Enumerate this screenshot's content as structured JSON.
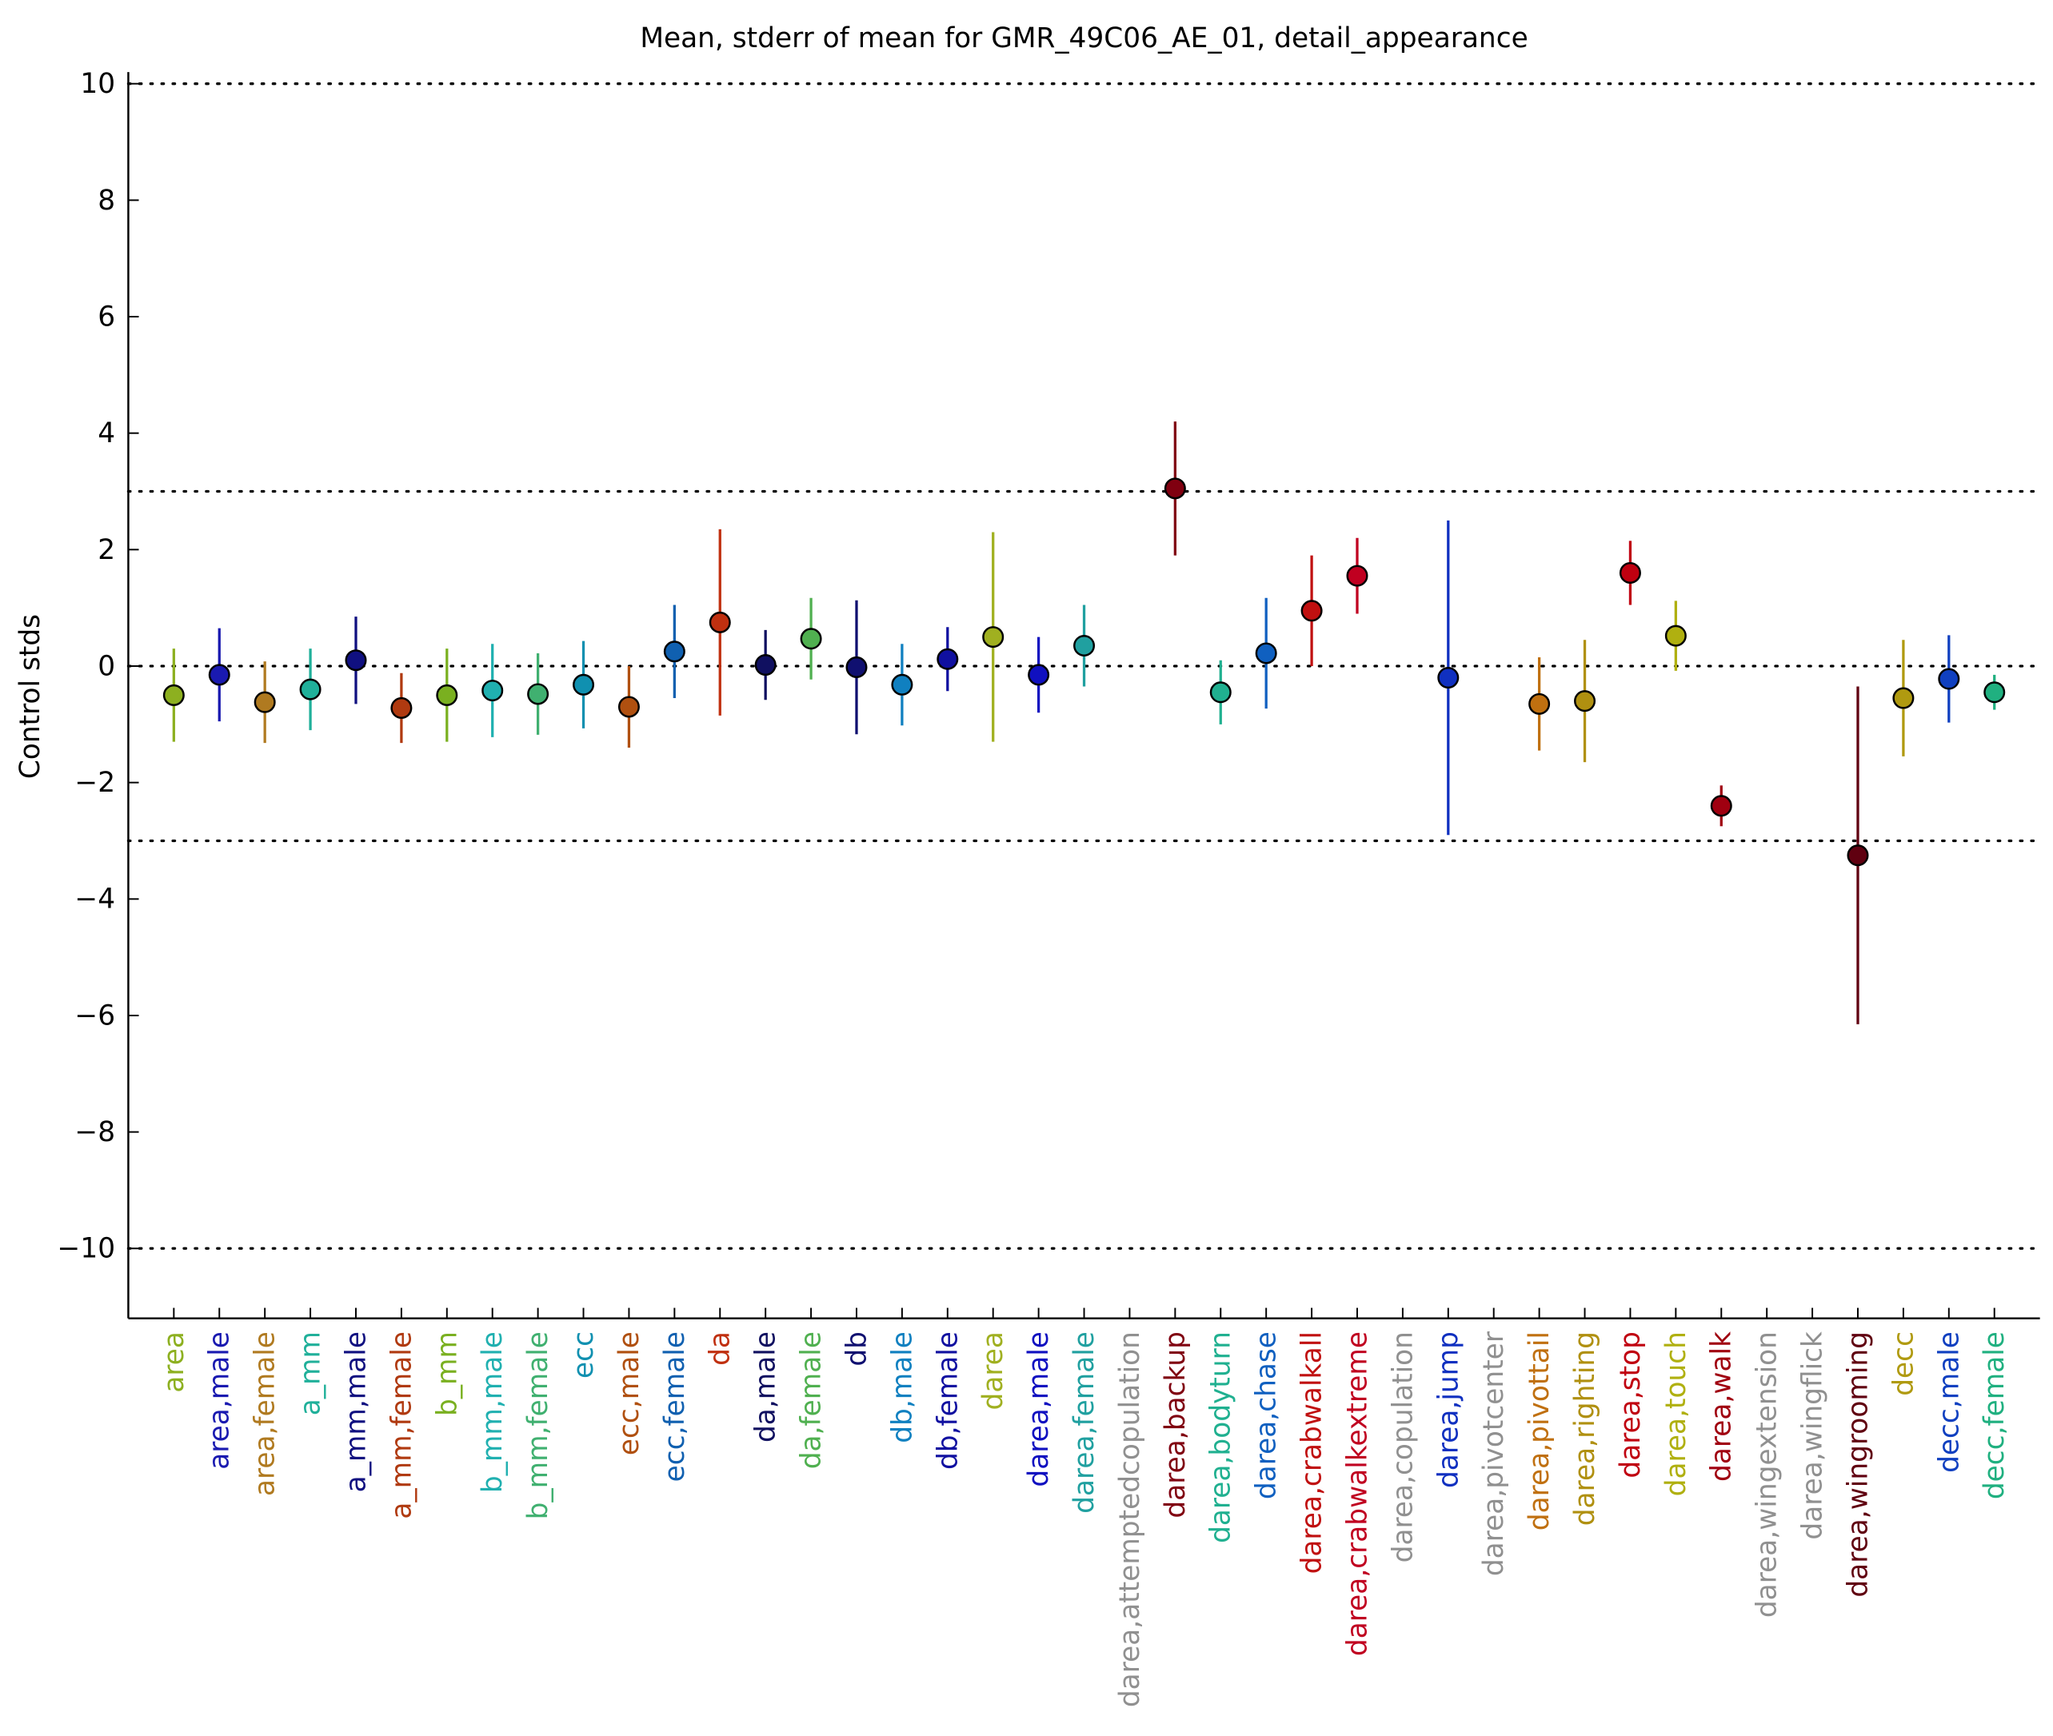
{
  "chart_data": {
    "type": "errorbar",
    "title": "Mean, stderr of mean for GMR_49C06_AE_01, detail_appearance",
    "ylabel": "Control stds",
    "categories": [
      "area",
      "area,male",
      "area,female",
      "a_mm",
      "a_mm,male",
      "a_mm,female",
      "b_mm",
      "b_mm,male",
      "b_mm,female",
      "ecc",
      "ecc,male",
      "ecc,female",
      "da",
      "da,male",
      "da,female",
      "db",
      "db,male",
      "db,female",
      "darea",
      "darea,male",
      "darea,female",
      "darea,attemptedcopulation",
      "darea,backup",
      "darea,bodyturn",
      "darea,chase",
      "darea,crabwalkall",
      "darea,crabwalkextreme",
      "darea,copulation",
      "darea,jump",
      "darea,pivotcenter",
      "darea,pivottail",
      "darea,righting",
      "darea,stop",
      "darea,touch",
      "darea,walk",
      "darea,wingextension",
      "darea,wingflick",
      "darea,wingrooming",
      "decc",
      "decc,male",
      "decc,female"
    ],
    "values": [
      -0.5,
      -0.15,
      -0.62,
      -0.4,
      0.1,
      -0.72,
      -0.5,
      -0.42,
      -0.48,
      -0.32,
      -0.7,
      0.25,
      0.75,
      0.02,
      0.47,
      -0.02,
      -0.32,
      0.12,
      0.5,
      -0.15,
      0.35,
      null,
      3.05,
      -0.45,
      0.22,
      0.95,
      1.55,
      null,
      -0.2,
      null,
      -0.65,
      -0.6,
      1.6,
      0.52,
      -2.4,
      null,
      null,
      -3.25,
      -0.55,
      -0.22,
      -0.45
    ],
    "errors": [
      0.8,
      0.8,
      0.7,
      0.7,
      0.75,
      0.6,
      0.8,
      0.8,
      0.7,
      0.75,
      0.7,
      0.8,
      1.6,
      0.6,
      0.7,
      1.15,
      0.7,
      0.55,
      1.8,
      0.65,
      0.7,
      null,
      1.15,
      0.55,
      0.95,
      0.95,
      0.65,
      null,
      2.7,
      null,
      0.8,
      1.05,
      0.55,
      0.6,
      0.35,
      null,
      null,
      2.9,
      1.0,
      0.75,
      0.3
    ],
    "colors": [
      "#8db020",
      "#1a1ab0",
      "#b07a20",
      "#20b09a",
      "#101080",
      "#b03a10",
      "#7ab020",
      "#20b0b0",
      "#40b070",
      "#1090b0",
      "#b05010",
      "#1060b0",
      "#c03010",
      "#101060",
      "#50b050",
      "#101070",
      "#1080c0",
      "#1010a0",
      "#a0b020",
      "#1010c0",
      "#20a0a0",
      "#909090",
      "#800010",
      "#20b090",
      "#1060c0",
      "#c01010",
      "#c00020",
      "#909090",
      "#1030c0",
      "#909090",
      "#c07010",
      "#b09010",
      "#c00010",
      "#b0b010",
      "#a00010",
      "#909090",
      "#909090",
      "#600010",
      "#b09a10",
      "#1040c0",
      "#20b080"
    ],
    "ylim": [
      -11.2,
      10.2
    ],
    "yticks": [
      {
        "value": -10,
        "label": "−10"
      },
      {
        "value": -8,
        "label": "−8"
      },
      {
        "value": -6,
        "label": "−6"
      },
      {
        "value": -4,
        "label": "−4"
      },
      {
        "value": -2,
        "label": "−2"
      },
      0,
      2,
      4,
      6,
      8,
      10
    ],
    "hlines": [
      -10,
      -3,
      0,
      3,
      10
    ]
  }
}
